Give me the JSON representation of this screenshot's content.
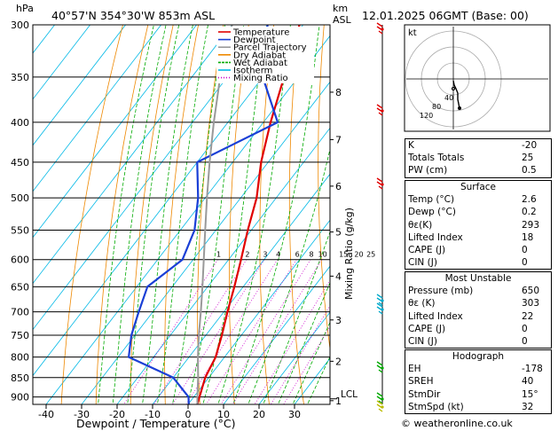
{
  "header": {
    "station": "40°57'N  354°30'W  853m  ASL",
    "datetime": "12.01.2025  06GMT  (Base: 00)"
  },
  "axes": {
    "p_unit": "hPa",
    "km_unit": "km",
    "asl_unit": "ASL",
    "xlabel": "Dewpoint / Temperature (°C)",
    "mixing_label": "Mixing Ratio (g/kg)",
    "pressure_levels": [
      "300",
      "350",
      "400",
      "450",
      "500",
      "550",
      "600",
      "650",
      "700",
      "750",
      "800",
      "850",
      "900"
    ],
    "temperature_ticks": [
      "-40",
      "-30",
      "-20",
      "-10",
      "0",
      "10",
      "20",
      "30"
    ],
    "height_km": [
      "1",
      "2",
      "3",
      "4",
      "5",
      "6",
      "7",
      "8"
    ],
    "lcl": "LCL",
    "mixing_ratio_values": [
      "1",
      "2",
      "3",
      "4",
      "6",
      "8",
      "10",
      "15",
      "20",
      "25"
    ]
  },
  "legend": {
    "items": [
      {
        "label": "Temperature",
        "color": "#e00000"
      },
      {
        "label": "Dewpoint",
        "color": "#1a3fd6"
      },
      {
        "label": "Parcel Trajectory",
        "color": "#999999"
      },
      {
        "label": "Dry Adiabat",
        "color": "#ee8800"
      },
      {
        "label": "Wet Adiabat",
        "color": "#00aa00"
      },
      {
        "label": "Isotherm",
        "color": "#00b8e6"
      },
      {
        "label": "Mixing Ratio",
        "color": "#cc00cc"
      }
    ]
  },
  "chart_data": {
    "type": "line",
    "series": [
      {
        "name": "Temperature",
        "color": "#e00000",
        "points": [
          [
            920,
            2.6
          ],
          [
            900,
            1.6
          ],
          [
            850,
            -1
          ],
          [
            800,
            -2.5
          ],
          [
            750,
            -5.5
          ],
          [
            700,
            -9
          ],
          [
            650,
            -12.5
          ],
          [
            600,
            -16.5
          ],
          [
            550,
            -21
          ],
          [
            500,
            -25.5
          ],
          [
            450,
            -32
          ],
          [
            400,
            -38
          ],
          [
            350,
            -44
          ],
          [
            300,
            -51
          ]
        ]
      },
      {
        "name": "Dewpoint",
        "color": "#1a3fd6",
        "points": [
          [
            920,
            0.2
          ],
          [
            900,
            -1.5
          ],
          [
            850,
            -10
          ],
          [
            800,
            -27
          ],
          [
            750,
            -31
          ],
          [
            700,
            -34
          ],
          [
            650,
            -37
          ],
          [
            600,
            -33
          ],
          [
            550,
            -36
          ],
          [
            500,
            -42
          ],
          [
            450,
            -50
          ],
          [
            400,
            -36
          ],
          [
            350,
            -50
          ],
          [
            300,
            -60
          ]
        ]
      },
      {
        "name": "Parcel Trajectory",
        "color": "#999999",
        "points": [
          [
            920,
            2.6
          ],
          [
            900,
            1
          ],
          [
            850,
            -3
          ],
          [
            800,
            -7.5
          ],
          [
            750,
            -12
          ],
          [
            700,
            -16.5
          ],
          [
            650,
            -21.5
          ],
          [
            600,
            -27
          ],
          [
            550,
            -33
          ],
          [
            500,
            -39.5
          ],
          [
            450,
            -46.5
          ],
          [
            400,
            -54
          ],
          [
            350,
            -62
          ],
          [
            300,
            -70
          ]
        ]
      }
    ],
    "xlim": [
      -40,
      35
    ],
    "ylim": [
      920,
      300
    ]
  },
  "hodograph": {
    "label": "kt",
    "ring_labels": [
      "40",
      "80",
      "120"
    ]
  },
  "indices": {
    "rows": [
      {
        "label": "K",
        "value": "-20"
      },
      {
        "label": "Totals Totals",
        "value": "25"
      },
      {
        "label": "PW (cm)",
        "value": "0.5"
      }
    ]
  },
  "surface": {
    "title": "Surface",
    "rows": [
      {
        "label": "Temp (°C)",
        "value": "2.6"
      },
      {
        "label": "Dewp (°C)",
        "value": "0.2"
      },
      {
        "label": "θε(K)",
        "value": "293"
      },
      {
        "label": "Lifted Index",
        "value": "18"
      },
      {
        "label": "CAPE (J)",
        "value": "0"
      },
      {
        "label": "CIN (J)",
        "value": "0"
      }
    ]
  },
  "most_unstable": {
    "title": "Most Unstable",
    "rows": [
      {
        "label": "Pressure (mb)",
        "value": "650"
      },
      {
        "label": "θε (K)",
        "value": "303"
      },
      {
        "label": "Lifted Index",
        "value": "22"
      },
      {
        "label": "CAPE (J)",
        "value": "0"
      },
      {
        "label": "CIN (J)",
        "value": "0"
      }
    ]
  },
  "hodograph_table": {
    "title": "Hodograph",
    "rows": [
      {
        "label": "EH",
        "value": "-178"
      },
      {
        "label": "SREH",
        "value": "40"
      },
      {
        "label": "StmDir",
        "value": "15°"
      },
      {
        "label": "StmSpd (kt)",
        "value": "32"
      }
    ]
  },
  "footer": {
    "credit": "© weatheronline.co.uk"
  }
}
